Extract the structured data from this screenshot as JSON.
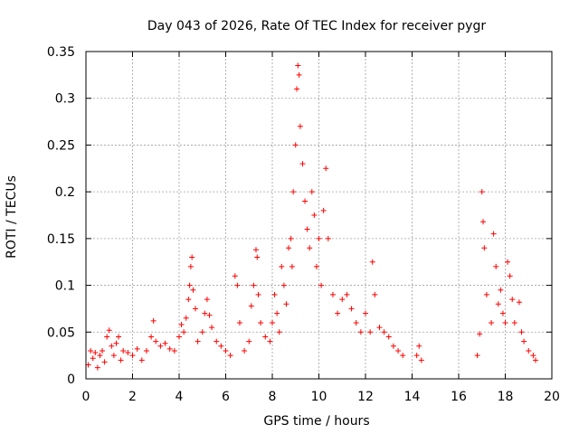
{
  "chart_data": {
    "type": "scatter",
    "title": "Day 043 of 2026, Rate Of TEC Index for receiver pygr",
    "xlabel": "GPS time / hours",
    "ylabel": "ROTI / TECUs",
    "xlim": [
      0,
      20
    ],
    "ylim": [
      0,
      0.35
    ],
    "x_ticks": [
      0,
      2,
      4,
      6,
      8,
      10,
      12,
      14,
      16,
      18,
      20
    ],
    "y_ticks": [
      0,
      0.05,
      0.1,
      0.15,
      0.2,
      0.25,
      0.3,
      0.35
    ],
    "x_tick_labels": [
      "0",
      "2",
      "4",
      "6",
      "8",
      "10",
      "12",
      "14",
      "16",
      "18",
      "20"
    ],
    "y_tick_labels": [
      "0",
      "0.05",
      "0.1",
      "0.15",
      "0.2",
      "0.25",
      "0.3",
      "0.35"
    ],
    "grid": true,
    "marker": "plus",
    "series_color": "#ff0000",
    "series": [
      {
        "name": "ROTI",
        "points": [
          [
            0.1,
            0.015
          ],
          [
            0.2,
            0.03
          ],
          [
            0.3,
            0.022
          ],
          [
            0.4,
            0.028
          ],
          [
            0.5,
            0.012
          ],
          [
            0.6,
            0.025
          ],
          [
            0.7,
            0.03
          ],
          [
            0.8,
            0.018
          ],
          [
            0.9,
            0.045
          ],
          [
            1.0,
            0.052
          ],
          [
            1.1,
            0.035
          ],
          [
            1.2,
            0.025
          ],
          [
            1.3,
            0.038
          ],
          [
            1.4,
            0.045
          ],
          [
            1.5,
            0.02
          ],
          [
            1.6,
            0.03
          ],
          [
            1.8,
            0.028
          ],
          [
            2.0,
            0.025
          ],
          [
            2.2,
            0.032
          ],
          [
            2.4,
            0.02
          ],
          [
            2.6,
            0.03
          ],
          [
            2.8,
            0.045
          ],
          [
            2.9,
            0.062
          ],
          [
            3.0,
            0.04
          ],
          [
            3.2,
            0.035
          ],
          [
            3.4,
            0.038
          ],
          [
            3.6,
            0.032
          ],
          [
            3.8,
            0.03
          ],
          [
            4.0,
            0.045
          ],
          [
            4.1,
            0.058
          ],
          [
            4.2,
            0.05
          ],
          [
            4.3,
            0.065
          ],
          [
            4.4,
            0.085
          ],
          [
            4.45,
            0.1
          ],
          [
            4.5,
            0.12
          ],
          [
            4.55,
            0.13
          ],
          [
            4.6,
            0.095
          ],
          [
            4.7,
            0.075
          ],
          [
            4.8,
            0.04
          ],
          [
            5.0,
            0.05
          ],
          [
            5.1,
            0.07
          ],
          [
            5.2,
            0.085
          ],
          [
            5.3,
            0.068
          ],
          [
            5.4,
            0.055
          ],
          [
            5.6,
            0.04
          ],
          [
            5.8,
            0.035
          ],
          [
            6.0,
            0.03
          ],
          [
            6.2,
            0.025
          ],
          [
            6.4,
            0.11
          ],
          [
            6.5,
            0.1
          ],
          [
            6.6,
            0.06
          ],
          [
            6.8,
            0.03
          ],
          [
            7.0,
            0.04
          ],
          [
            7.1,
            0.078
          ],
          [
            7.2,
            0.1
          ],
          [
            7.3,
            0.138
          ],
          [
            7.35,
            0.13
          ],
          [
            7.4,
            0.09
          ],
          [
            7.5,
            0.06
          ],
          [
            7.7,
            0.045
          ],
          [
            7.9,
            0.04
          ],
          [
            8.0,
            0.06
          ],
          [
            8.1,
            0.09
          ],
          [
            8.2,
            0.07
          ],
          [
            8.3,
            0.05
          ],
          [
            8.4,
            0.12
          ],
          [
            8.5,
            0.1
          ],
          [
            8.6,
            0.08
          ],
          [
            8.7,
            0.14
          ],
          [
            8.8,
            0.15
          ],
          [
            8.85,
            0.12
          ],
          [
            8.9,
            0.2
          ],
          [
            9.0,
            0.25
          ],
          [
            9.05,
            0.31
          ],
          [
            9.1,
            0.335
          ],
          [
            9.15,
            0.325
          ],
          [
            9.2,
            0.27
          ],
          [
            9.3,
            0.23
          ],
          [
            9.4,
            0.19
          ],
          [
            9.5,
            0.16
          ],
          [
            9.6,
            0.14
          ],
          [
            9.7,
            0.2
          ],
          [
            9.8,
            0.175
          ],
          [
            9.9,
            0.12
          ],
          [
            10.0,
            0.15
          ],
          [
            10.1,
            0.1
          ],
          [
            10.2,
            0.18
          ],
          [
            10.3,
            0.225
          ],
          [
            10.4,
            0.15
          ],
          [
            10.6,
            0.09
          ],
          [
            10.8,
            0.07
          ],
          [
            11.0,
            0.085
          ],
          [
            11.2,
            0.09
          ],
          [
            11.4,
            0.075
          ],
          [
            11.6,
            0.06
          ],
          [
            11.8,
            0.05
          ],
          [
            12.0,
            0.07
          ],
          [
            12.2,
            0.05
          ],
          [
            12.3,
            0.125
          ],
          [
            12.4,
            0.09
          ],
          [
            12.6,
            0.055
          ],
          [
            12.8,
            0.05
          ],
          [
            13.0,
            0.045
          ],
          [
            13.2,
            0.035
          ],
          [
            13.4,
            0.03
          ],
          [
            13.6,
            0.025
          ],
          [
            14.2,
            0.025
          ],
          [
            14.3,
            0.035
          ],
          [
            14.4,
            0.02
          ],
          [
            16.8,
            0.025
          ],
          [
            16.9,
            0.048
          ],
          [
            17.0,
            0.2
          ],
          [
            17.05,
            0.168
          ],
          [
            17.1,
            0.14
          ],
          [
            17.2,
            0.09
          ],
          [
            17.4,
            0.06
          ],
          [
            17.5,
            0.155
          ],
          [
            17.6,
            0.12
          ],
          [
            17.7,
            0.08
          ],
          [
            17.8,
            0.095
          ],
          [
            17.9,
            0.07
          ],
          [
            18.0,
            0.06
          ],
          [
            18.1,
            0.125
          ],
          [
            18.2,
            0.11
          ],
          [
            18.3,
            0.085
          ],
          [
            18.4,
            0.06
          ],
          [
            18.6,
            0.082
          ],
          [
            18.7,
            0.05
          ],
          [
            18.8,
            0.04
          ],
          [
            19.0,
            0.03
          ],
          [
            19.2,
            0.025
          ],
          [
            19.3,
            0.02
          ]
        ]
      }
    ]
  }
}
